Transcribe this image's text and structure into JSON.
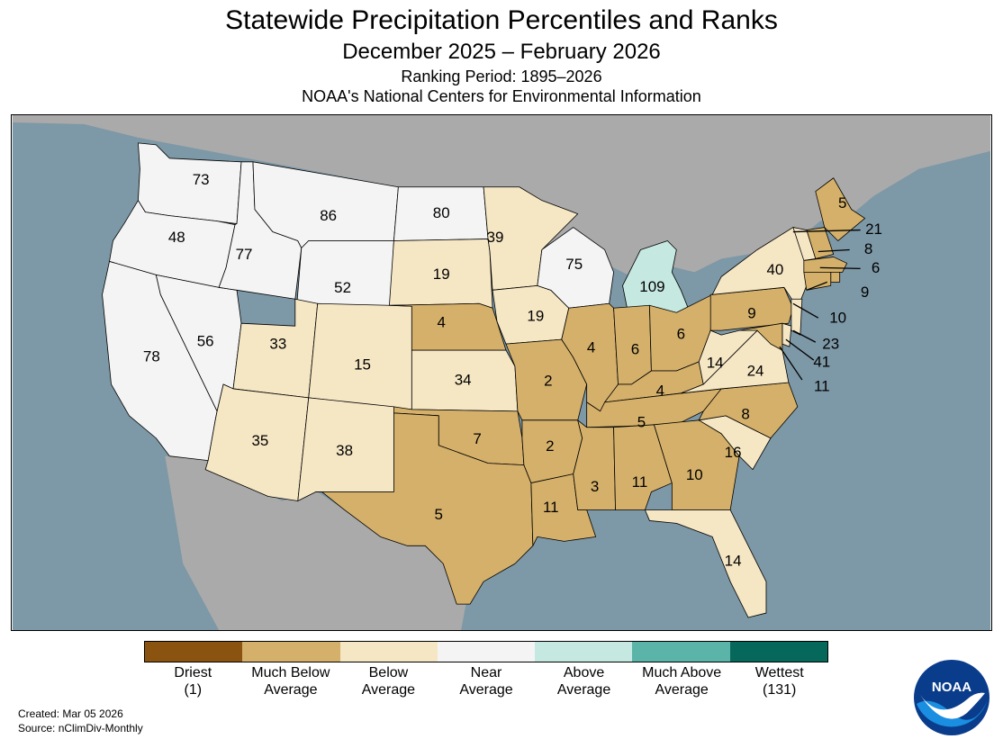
{
  "titles": {
    "main": "Statewide Precipitation Percentiles and Ranks",
    "period": "December 2025 – February 2026",
    "ranking": "Ranking Period: 1895–2026",
    "agency": "NOAA's National Centers for Environmental Information"
  },
  "colors": {
    "driest": "#8a5410",
    "much_below": "#d4b06a",
    "below": "#f5e6c4",
    "near": "#f4f4f4",
    "above": "#c5e8e0",
    "much_above": "#5ab4a8",
    "wettest": "#05685a",
    "ocean": "#7d98a6",
    "land": "#aaaaaa"
  },
  "legend": [
    {
      "label_1": "Driest",
      "label_2": "(1)",
      "color": "#8a5410"
    },
    {
      "label_1": "Much Below",
      "label_2": "Average",
      "color": "#d4b06a"
    },
    {
      "label_1": "Below",
      "label_2": "Average",
      "color": "#f5e6c4"
    },
    {
      "label_1": "Near",
      "label_2": "Average",
      "color": "#f4f4f4"
    },
    {
      "label_1": "Above",
      "label_2": "Average",
      "color": "#c5e8e0"
    },
    {
      "label_1": "Much Above",
      "label_2": "Average",
      "color": "#5ab4a8"
    },
    {
      "label_1": "Wettest",
      "label_2": "(131)",
      "color": "#05685a"
    }
  ],
  "states": [
    {
      "label": "73",
      "category": "near"
    },
    {
      "label": "48",
      "category": "near"
    },
    {
      "label": "78",
      "category": "near"
    },
    {
      "label": "56",
      "category": "near"
    },
    {
      "label": "77",
      "category": "near"
    },
    {
      "label": "86",
      "category": "near"
    },
    {
      "label": "52",
      "category": "near"
    },
    {
      "label": "33",
      "category": "below"
    },
    {
      "label": "35",
      "category": "below"
    },
    {
      "label": "15",
      "category": "below"
    },
    {
      "label": "38",
      "category": "below"
    },
    {
      "label": "80",
      "category": "near"
    },
    {
      "label": "19",
      "category": "below"
    },
    {
      "label": "4",
      "category": "much_below"
    },
    {
      "label": "34",
      "category": "below"
    },
    {
      "label": "7",
      "category": "much_below"
    },
    {
      "label": "5",
      "category": "much_below"
    },
    {
      "label": "39",
      "category": "below"
    },
    {
      "label": "19",
      "category": "below"
    },
    {
      "label": "2",
      "category": "much_below"
    },
    {
      "label": "2",
      "category": "much_below"
    },
    {
      "label": "11",
      "category": "much_below"
    },
    {
      "label": "75",
      "category": "near"
    },
    {
      "label": "4",
      "category": "much_below"
    },
    {
      "label": "109",
      "category": "above"
    },
    {
      "label": "6",
      "category": "much_below"
    },
    {
      "label": "6",
      "category": "much_below"
    },
    {
      "label": "4",
      "category": "much_below"
    },
    {
      "label": "5",
      "category": "much_below"
    },
    {
      "label": "3",
      "category": "much_below"
    },
    {
      "label": "11",
      "category": "much_below"
    },
    {
      "label": "10",
      "category": "much_below"
    },
    {
      "label": "14",
      "category": "below"
    },
    {
      "label": "16",
      "category": "below"
    },
    {
      "label": "8",
      "category": "much_below"
    },
    {
      "label": "24",
      "category": "below"
    },
    {
      "label": "14",
      "category": "below"
    },
    {
      "label": "9",
      "category": "much_below"
    },
    {
      "label": "40",
      "category": "below"
    },
    {
      "label": "5",
      "category": "much_below"
    },
    {
      "label": "21",
      "category": "below"
    },
    {
      "label": "8",
      "category": "much_below"
    },
    {
      "label": "6",
      "category": "much_below"
    },
    {
      "label": "9",
      "category": "much_below"
    },
    {
      "label": "10",
      "category": "much_below"
    },
    {
      "label": "23",
      "category": "below"
    },
    {
      "label": "41",
      "category": "below"
    },
    {
      "label": "11",
      "category": "much_below"
    }
  ],
  "footer": {
    "created": "Created: Mar 05 2026",
    "source": "Source: nClimDiv-Monthly",
    "logo_text": "NOAA"
  }
}
